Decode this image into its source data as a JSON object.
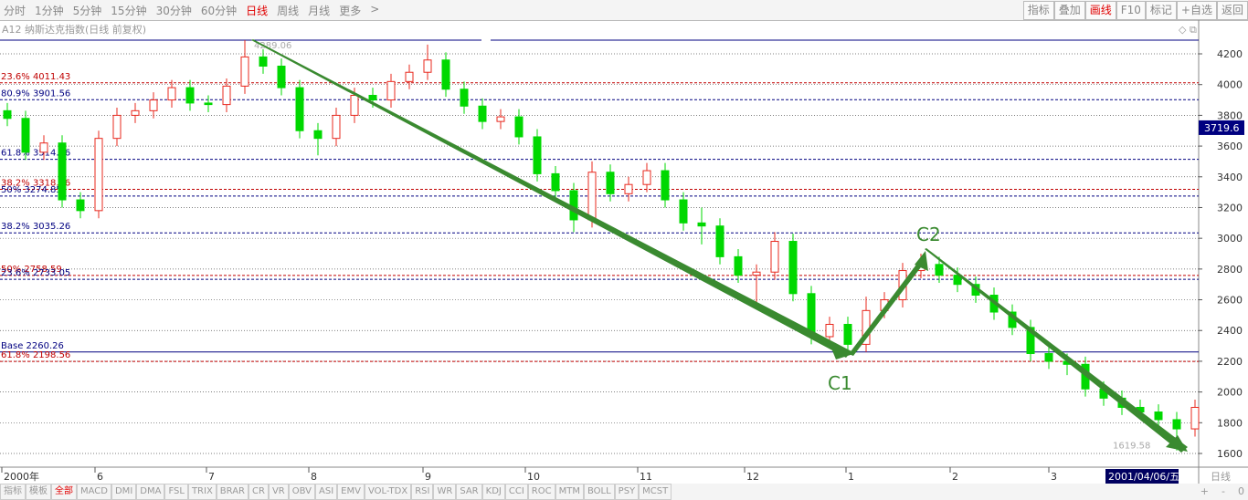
{
  "toolbar": {
    "periods": [
      "分时",
      "1分钟",
      "5分钟",
      "15分钟",
      "30分钟",
      "60分钟",
      "日线",
      "周线",
      "月线",
      "更多",
      ">"
    ],
    "active_period": 6,
    "buttons": [
      "指标",
      "叠加",
      "画线",
      "F10",
      "标记",
      "+自选",
      "返回"
    ],
    "active_button": 2
  },
  "chart_data": {
    "type": "candlestick",
    "title": "A12 纳斯达克指数(日线 前复权)",
    "open": [
      3830,
      3780,
      3560,
      3620,
      3250,
      3180,
      3650,
      3800,
      3830,
      3900,
      3980,
      3880,
      3870,
      3990,
      4180,
      4120,
      3980,
      3700,
      3650,
      3800,
      3930,
      3900,
      4020,
      4080,
      4160,
      3970,
      3860,
      3760,
      3790,
      3660,
      3420,
      3310,
      3120,
      3430,
      3290,
      3350,
      3440,
      3250,
      3100,
      3080,
      2880,
      2760,
      2780,
      2980,
      2640,
      2360,
      2440,
      2310,
      2530,
      2600,
      2790,
      2830,
      2760,
      2700,
      2630,
      2520,
      2420,
      2250,
      2200,
      2180,
      2020,
      1960,
      1900,
      1870,
      1820,
      1760
    ],
    "high": [
      3880,
      3830,
      3670,
      3670,
      3300,
      3700,
      3850,
      3880,
      3950,
      4030,
      4030,
      3930,
      4040,
      4289.06,
      4230,
      4170,
      4030,
      3750,
      3850,
      3980,
      3980,
      4070,
      4130,
      4260,
      4210,
      4020,
      3910,
      3840,
      3840,
      3710,
      3470,
      3360,
      3500,
      3480,
      3400,
      3490,
      3490,
      3300,
      3200,
      3130,
      2930,
      2830,
      3040,
      3030,
      2690,
      2490,
      2490,
      2620,
      2650,
      2840,
      2900,
      2880,
      2810,
      2750,
      2680,
      2570,
      2470,
      2300,
      2250,
      2230,
      2070,
      2010,
      1950,
      1920,
      1870,
      1950
    ],
    "low": [
      3730,
      3510,
      3510,
      3200,
      3130,
      3130,
      3600,
      3750,
      3780,
      3850,
      3830,
      3820,
      3820,
      3940,
      4070,
      3930,
      3650,
      3540,
      3600,
      3750,
      3850,
      3850,
      3970,
      4030,
      3920,
      3810,
      3710,
      3710,
      3610,
      3370,
      3260,
      3040,
      3070,
      3240,
      3240,
      3300,
      3200,
      3050,
      2960,
      2830,
      2710,
      2560,
      2730,
      2590,
      2310,
      2310,
      2260.26,
      2260,
      2480,
      2550,
      2740,
      2710,
      2650,
      2580,
      2470,
      2370,
      2200,
      2150,
      2110,
      1970,
      1910,
      1850,
      1820,
      1770,
      1619.58,
      1710
    ],
    "close": [
      3780,
      3560,
      3620,
      3250,
      3180,
      3650,
      3800,
      3830,
      3900,
      3980,
      3880,
      3870,
      3990,
      4180,
      4120,
      3980,
      3700,
      3650,
      3800,
      3930,
      3900,
      4020,
      4080,
      4160,
      3970,
      3860,
      3760,
      3790,
      3660,
      3420,
      3310,
      3120,
      3430,
      3290,
      3350,
      3440,
      3250,
      3100,
      3080,
      2880,
      2760,
      2780,
      2980,
      2640,
      2360,
      2440,
      2310,
      2530,
      2600,
      2790,
      2830,
      2760,
      2700,
      2630,
      2520,
      2420,
      2250,
      2200,
      2180,
      2020,
      1960,
      1900,
      1870,
      1820,
      1760,
      1900
    ],
    "up_color": "#e8281e",
    "down_color": "#00d800",
    "ylim": [
      1511,
      4301
    ],
    "yticks": [
      1600,
      1800,
      2000,
      2200,
      2400,
      2600,
      2800,
      3000,
      3200,
      3400,
      3600,
      3800,
      4000,
      4200
    ],
    "grid": true,
    "x_labels": [
      "2000年",
      "6",
      "7",
      "8",
      "9",
      "10",
      "11",
      "12",
      "1",
      "2",
      "3"
    ],
    "period_label": "日线",
    "cursor_date": "2001/04/06/五",
    "last_price": 3719.6,
    "high_label": 4289.06,
    "low_label": 1619.58,
    "levels": [
      {
        "label": "23.6% 4011.43",
        "value": 4011.43,
        "color": "#c00000",
        "style": "dashed"
      },
      {
        "label": "80.9% 3901.56",
        "value": 3901.56,
        "color": "#000080",
        "style": "dashed"
      },
      {
        "label": "61.8% 3514.06",
        "value": 3514.06,
        "color": "#000080",
        "style": "dashed"
      },
      {
        "label": "38.2% 3318.56",
        "value": 3318.56,
        "color": "#c00000",
        "style": "dashed"
      },
      {
        "label": "50% 3274.85",
        "value": 3274.85,
        "color": "#000080",
        "style": "dashed"
      },
      {
        "label": "38.2% 3035.26",
        "value": 3035.26,
        "color": "#000080",
        "style": "dashed"
      },
      {
        "label": "50% 2758.59",
        "value": 2758.59,
        "color": "#c00000",
        "style": "dashed"
      },
      {
        "label": "23.6% 2733.05",
        "value": 2733.05,
        "color": "#000080",
        "style": "dashed"
      },
      {
        "label": "Base 2260.26",
        "value": 2260.26,
        "color": "#000080",
        "style": "solid"
      },
      {
        "label": "61.8% 2198.56",
        "value": 2198.56,
        "color": "#c00000",
        "style": "dashed"
      }
    ],
    "annotations": [
      "C1",
      "C2"
    ]
  },
  "indicator_tabs": [
    "指标",
    "模板",
    "全部",
    "MACD",
    "DMI",
    "DMA",
    "FSL",
    "TRIX",
    "BRAR",
    "CR",
    "VR",
    "OBV",
    "ASI",
    "EMV",
    "VOL-TDX",
    "RSI",
    "WR",
    "SAR",
    "KDJ",
    "CCI",
    "ROC",
    "MTM",
    "BOLL",
    "PSY",
    "MCST"
  ],
  "active_tab": 2,
  "zoom_buttons": [
    "+",
    "-",
    "0"
  ]
}
